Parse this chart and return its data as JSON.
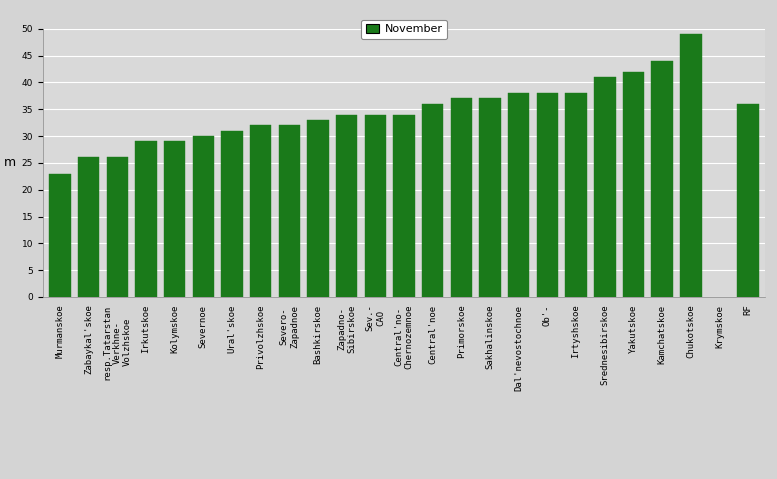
{
  "categories": [
    "Murmanskoe",
    "Zabaykal'skoe",
    "resp.Tatarstan\nVerkhne-\nVolzhskoe",
    "Irkutskoe",
    "Kolymskoe",
    "Severnoe",
    "Ural'skoe",
    "Privolzhskoe",
    "Severo-\nZapadnoe",
    "Bashkirskoe",
    "Zapadno-\nSibirskoe",
    "Sev.-\nCAO",
    "Central'no-\nChernozemnoe",
    "Central'noe",
    "Primorskoe",
    "Sakhalinskoe",
    "Dal'nevostochnoe",
    "Ob'-",
    "Irtyshskoe",
    "Srednesibirskoe",
    "Yakutskoe",
    "Kamchatskoe",
    "Chukotskoe",
    "Krymskoe",
    "RF"
  ],
  "values": [
    23,
    26,
    26,
    29,
    29,
    30,
    31,
    32,
    32,
    33,
    34,
    34,
    34,
    36,
    37,
    37,
    38,
    38,
    38,
    41,
    42,
    44,
    49,
    0,
    36
  ],
  "bar_color": "#1a7a1a",
  "bar_edge_color": "#1a7a1a",
  "ylabel": "m",
  "ylim": [
    0,
    50
  ],
  "yticks": [
    0,
    5,
    10,
    15,
    20,
    25,
    30,
    35,
    40,
    45,
    50
  ],
  "legend_label": "November",
  "legend_color": "#1a7a1a",
  "background_color": "#d4d4d4",
  "plot_bg_color": "#d9d9d9",
  "grid_color": "#ffffff",
  "tick_fontsize": 6.5,
  "ylabel_fontsize": 9
}
